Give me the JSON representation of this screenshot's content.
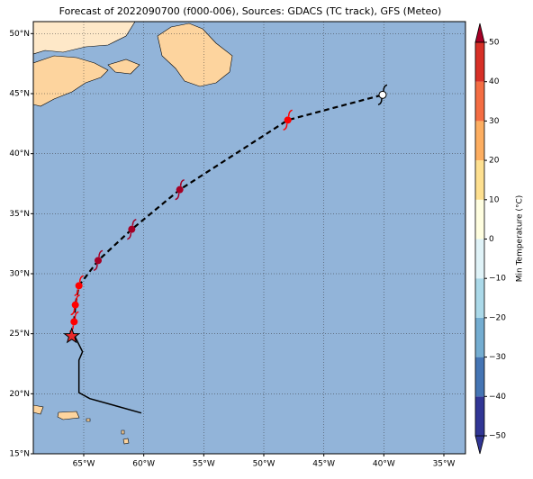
{
  "chart_data": {
    "type": "map",
    "title": "Forecast of 2022090700 (f000-006), Sources: GDACS (TC track), GFS (Meteo)",
    "xlim": [
      -69.2,
      -33.2
    ],
    "ylim": [
      15,
      51
    ],
    "xticks": [
      {
        "value": -65,
        "label": "65°W"
      },
      {
        "value": -60,
        "label": "60°W"
      },
      {
        "value": -55,
        "label": "55°W"
      },
      {
        "value": -50,
        "label": "50°W"
      },
      {
        "value": -45,
        "label": "45°W"
      },
      {
        "value": -40,
        "label": "40°W"
      },
      {
        "value": -35,
        "label": "35°W"
      }
    ],
    "yticks": [
      {
        "value": 15,
        "label": "15°N"
      },
      {
        "value": 20,
        "label": "20°N"
      },
      {
        "value": 25,
        "label": "25°N"
      },
      {
        "value": 30,
        "label": "30°N"
      },
      {
        "value": 35,
        "label": "35°N"
      },
      {
        "value": 40,
        "label": "40°N"
      },
      {
        "value": 45,
        "label": "45°N"
      },
      {
        "value": 50,
        "label": "50°N"
      }
    ],
    "grid": true,
    "ocean_color": "#92b4d9",
    "past_track": {
      "lon": [
        -60.2,
        -64.5,
        -65.4,
        -65.4,
        -65.1,
        -65.8
      ],
      "lat": [
        18.4,
        19.6,
        20.1,
        22.8,
        23.5,
        24.9
      ],
      "color": "#000000"
    },
    "position": {
      "lon": -66.0,
      "lat": 24.8,
      "color": "#e8282b"
    },
    "forecast_track": {
      "lon": [
        -65.8,
        -65.7,
        -65.4,
        -63.8,
        -61.0,
        -57.0,
        -48.0,
        -40.1
      ],
      "lat": [
        26.0,
        27.4,
        29.0,
        31.1,
        33.7,
        37.0,
        42.8,
        44.9
      ],
      "colors": [
        "#ff0000",
        "#ff0000",
        "#ff0000",
        "#a50026",
        "#a50026",
        "#a50026",
        "#ff0000",
        "#ffffff"
      ]
    },
    "colorbar": {
      "label": "Min Temperature (°C)",
      "lim": [
        -50,
        50
      ],
      "ticks": [
        {
          "value": -50,
          "label": "−50"
        },
        {
          "value": -40,
          "label": "−40"
        },
        {
          "value": -30,
          "label": "−30"
        },
        {
          "value": -20,
          "label": "−20"
        },
        {
          "value": -10,
          "label": "−10"
        },
        0,
        10,
        20,
        30,
        40,
        50
      ],
      "colors": [
        "#313695",
        "#4575b4",
        "#74add1",
        "#abd9e9",
        "#e0f3f8",
        "#fffee0",
        "#fee090",
        "#fdae61",
        "#f46d43",
        "#d73027",
        "#a50026"
      ]
    }
  }
}
